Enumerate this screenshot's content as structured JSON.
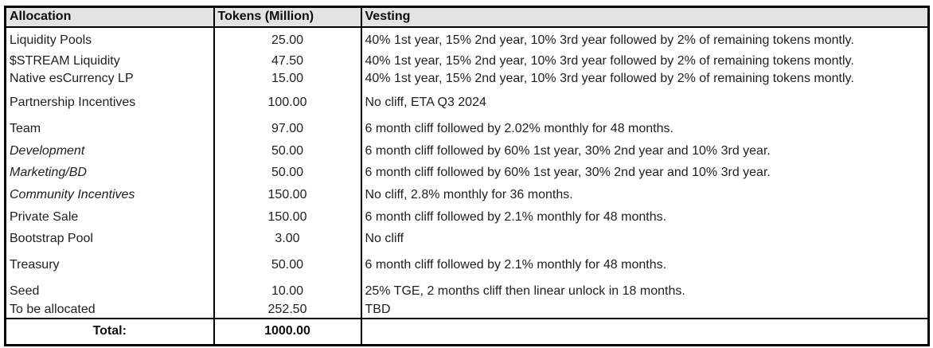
{
  "table": {
    "headers": [
      "Allocation",
      "Tokens (Million)",
      "Vesting"
    ],
    "rows": [
      {
        "allocation": "Liquidity Pools",
        "tokens": "25.00",
        "vesting": "40% 1st year, 15% 2nd year, 10% 3rd year followed by 2% of remaining tokens montly.",
        "italic": false
      },
      {
        "allocation": "$STREAM Liquidity",
        "tokens": "47.50",
        "vesting": "40% 1st year, 15% 2nd year, 10% 3rd year followed by 2% of remaining tokens montly.",
        "italic": false
      },
      {
        "allocation": "Native esCurrency LP",
        "tokens": "15.00",
        "vesting": "40% 1st year, 15% 2nd year, 10% 3rd year followed by 2% of remaining tokens montly.",
        "italic": false
      },
      {
        "allocation": "Partnership Incentives",
        "tokens": "100.00",
        "vesting": "No cliff, ETA Q3 2024",
        "italic": false
      },
      {
        "allocation": "Team",
        "tokens": "97.00",
        "vesting": "6 month cliff followed by 2.02% monthly for 48 months.",
        "italic": false
      },
      {
        "allocation": "Development",
        "tokens": "50.00",
        "vesting": "6 month cliff followed by 60% 1st year, 30% 2nd year and 10% 3rd year.",
        "italic": true
      },
      {
        "allocation": "Marketing/BD",
        "tokens": "50.00",
        "vesting": "6 month cliff followed by 60% 1st year, 30% 2nd year and 10% 3rd year.",
        "italic": true
      },
      {
        "allocation": "Community Incentives",
        "tokens": "150.00",
        "vesting": "No cliff,  2.8% monthly for 36 months.",
        "italic": true
      },
      {
        "allocation": "Private Sale",
        "tokens": "150.00",
        "vesting": "6 month cliff followed by 2.1% monthly for 48 months.",
        "italic": false
      },
      {
        "allocation": "Bootstrap Pool",
        "tokens": "3.00",
        "vesting": "No cliff",
        "italic": false
      },
      {
        "allocation": "Treasury",
        "tokens": "50.00",
        "vesting": "6 month cliff followed by 2.1% monthly for 48 months.",
        "italic": false
      },
      {
        "allocation": "Seed",
        "tokens": "10.00",
        "vesting": "25% TGE, 2 months cliff then linear unlock in 18 months.",
        "italic": false
      },
      {
        "allocation": "To be allocated",
        "tokens": "252.50",
        "vesting": "TBD",
        "italic": false
      }
    ],
    "total": {
      "label": "Total:",
      "tokens": "1000.00",
      "vesting": ""
    }
  },
  "colors": {
    "page_bg": "#ffffff",
    "header_bg": "#e3e3e3",
    "border": "#000000",
    "text": "#1e1e1e"
  }
}
